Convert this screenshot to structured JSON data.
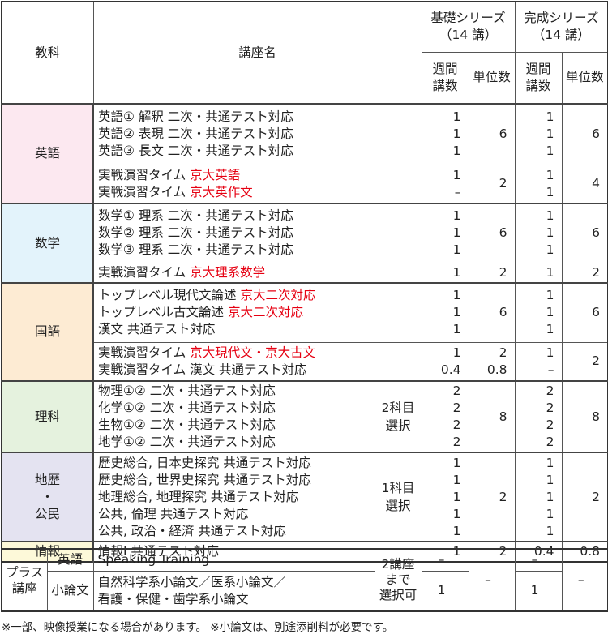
{
  "header": {
    "subject": "教科",
    "course": "講座名",
    "kiso": {
      "title": "基礎シリーズ",
      "sub": "（14 講）"
    },
    "kansei": {
      "title": "完成シリーズ",
      "sub": "（14 講）"
    },
    "weekly": [
      "週間",
      "講数"
    ],
    "units": "単位数"
  },
  "subjects": [
    {
      "name": [
        "英語"
      ],
      "color": "#fce8f0",
      "rows": [
        {
          "courses": [
            [
              "英語① 解釈 二次・共通テスト対応",
              ""
            ],
            [
              "英語② 表現 二次・共通テスト対応",
              ""
            ],
            [
              "英語③ 長文 二次・共通テスト対応",
              ""
            ]
          ],
          "kiso_weekly": [
            "1",
            "1",
            "1"
          ],
          "kiso_units": [
            "6"
          ],
          "kansei_weekly": [
            "1",
            "1",
            "1"
          ],
          "kansei_units": [
            "6"
          ],
          "h": 75
        },
        {
          "courses": [
            [
              "実戦演習タイム ",
              "京大英語"
            ],
            [
              "実戦演習タイム ",
              "京大英作文"
            ]
          ],
          "kiso_weekly": [
            "1",
            "–"
          ],
          "kiso_units": [
            "2"
          ],
          "kansei_weekly": [
            "1",
            "1"
          ],
          "kansei_units": [
            "4"
          ],
          "h": 48
        }
      ]
    },
    {
      "name": [
        "数学"
      ],
      "color": "#e3f3fb",
      "rows": [
        {
          "courses": [
            [
              "数学① 理系 二次・共通テスト対応",
              ""
            ],
            [
              "数学② 理系 二次・共通テスト対応",
              ""
            ],
            [
              "数学③ 理系 二次・共通テスト対応",
              ""
            ]
          ],
          "kiso_weekly": [
            "1",
            "1",
            "1"
          ],
          "kiso_units": [
            "6"
          ],
          "kansei_weekly": [
            "1",
            "1",
            "1"
          ],
          "kansei_units": [
            "6"
          ],
          "h": 73
        },
        {
          "courses": [
            [
              "実戦演習タイム ",
              "京大理系数学"
            ]
          ],
          "kiso_weekly": [
            "1"
          ],
          "kiso_units": [
            "2"
          ],
          "kansei_weekly": [
            "1"
          ],
          "kansei_units": [
            "2"
          ],
          "h": 25
        }
      ]
    },
    {
      "name": [
        "国語"
      ],
      "color": "#fdebd3",
      "rows": [
        {
          "courses": [
            [
              "トップレベル現代文論述 ",
              "京大二次対応"
            ],
            [
              "トップレベル古文論述 ",
              "京大二次対応"
            ],
            [
              "漢文 共通テスト対応",
              ""
            ]
          ],
          "kiso_weekly": [
            "1",
            "1",
            "1"
          ],
          "kiso_units": [
            "6"
          ],
          "kansei_weekly": [
            "1",
            "1",
            "1"
          ],
          "kansei_units": [
            "6"
          ],
          "h": 73
        },
        {
          "courses": [
            [
              "実戦演習タイム ",
              "京大現代文・京大古文"
            ],
            [
              "実戦演習タイム 漢文 共通テスト対応",
              ""
            ]
          ],
          "kiso_weekly": [
            "1",
            "0.4"
          ],
          "kiso_units": [
            "2",
            "0.8"
          ],
          "kansei_weekly": [
            "1",
            "–"
          ],
          "kansei_units": [
            "2"
          ],
          "h": 48
        }
      ]
    },
    {
      "name": [
        "理科"
      ],
      "color": "#e5f2de",
      "rows": [
        {
          "courses": [
            [
              "物理①② 二次・共通テスト対応",
              ""
            ],
            [
              "化学①② 二次・共通テスト対応",
              ""
            ],
            [
              "生物①② 二次・共通テスト対応",
              ""
            ],
            [
              "地学①② 二次・共通テスト対応",
              ""
            ]
          ],
          "note": [
            "2科目",
            "選択"
          ],
          "kiso_weekly": [
            "2",
            "2",
            "2",
            "2"
          ],
          "kiso_units": [
            "8"
          ],
          "kansei_weekly": [
            "2",
            "2",
            "2",
            "2"
          ],
          "kansei_units": [
            "8"
          ],
          "h": 88
        }
      ]
    },
    {
      "name": [
        "地歴",
        "・",
        "公民"
      ],
      "color": "#e4e3f1",
      "rows": [
        {
          "courses": [
            [
              "歴史総合, 日本史探究 共通テスト対応",
              ""
            ],
            [
              "歴史総合, 世界史探究 共通テスト対応",
              ""
            ],
            [
              "地理総合, 地理探究 共通テスト対応",
              ""
            ],
            [
              "公共, 倫理 共通テスト対応",
              ""
            ],
            [
              "公共, 政治・経済 共通テスト対応",
              ""
            ]
          ],
          "note": [
            "1科目",
            "選択"
          ],
          "kiso_weekly": [
            "1",
            "1",
            "1",
            "1",
            "1"
          ],
          "kiso_units": [
            "2"
          ],
          "kansei_weekly": [
            "1",
            "1",
            "1",
            "1",
            "1"
          ],
          "kansei_units": [
            "2"
          ],
          "h": 110
        }
      ]
    },
    {
      "name": [
        "情報"
      ],
      "color": "#fdf9d9",
      "rows": [
        {
          "courses": [
            [
              "情報Ⅰ 共通テスト対応",
              ""
            ]
          ],
          "kiso_weekly": [
            "1"
          ],
          "kiso_units": [
            "2"
          ],
          "kansei_weekly": [
            "0.4"
          ],
          "kansei_units": [
            "0.8"
          ],
          "h": 25
        }
      ]
    }
  ],
  "plus": {
    "label": [
      "プラス",
      "講座"
    ],
    "note": [
      "2講座",
      "まで",
      "選択可"
    ],
    "kiso_units": "–",
    "kansei_units": "–",
    "rows": [
      {
        "subject": "英語",
        "courses": [
          "Speaking Training"
        ],
        "kiso_weekly": "–",
        "kansei_weekly": "–"
      },
      {
        "subject": "小論文",
        "courses": [
          "自然科学系小論文／医系小論文／",
          "看護・保健・歯学系小論文"
        ],
        "kiso_weekly": "1",
        "kansei_weekly": "1"
      }
    ]
  },
  "footnote": "※一部、映像授業になる場合があります。 ※小論文は、別途添削料が必要です。"
}
